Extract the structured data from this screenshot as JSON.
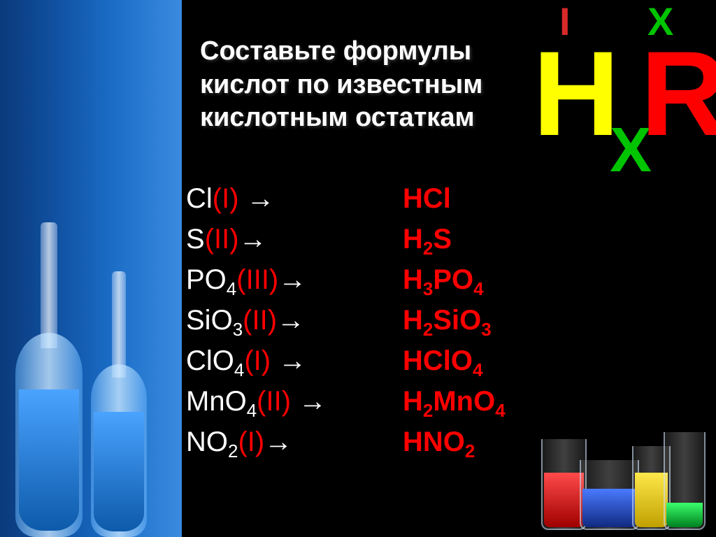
{
  "heading": "Составьте формулы кислот по известным кислотным остаткам",
  "general_formula": {
    "valence_h": "I",
    "valence_r": "X",
    "H": "H",
    "x": "X",
    "R": "R",
    "colors": {
      "H": "#ffff00",
      "x": "#00c400",
      "R": "#ff0000",
      "valence_h": "#d92a2a",
      "valence_r": "#00c400"
    }
  },
  "rows": [
    {
      "residue_elem": "Cl",
      "residue_sub": "",
      "valence": "(I)",
      "acid_pre": "H",
      "acid_elem": "Cl",
      "acid_post_sub": ""
    },
    {
      "residue_elem": "S",
      "residue_sub": "",
      "valence": "(II)",
      "acid_pre": "H",
      "acid_pre_sub": "2",
      "acid_elem": "S",
      "acid_post_sub": ""
    },
    {
      "residue_elem": "PO",
      "residue_sub": "4",
      "valence": "(III)",
      "acid_pre": "H",
      "acid_pre_sub": "3",
      "acid_elem": "PO",
      "acid_post_sub": "4"
    },
    {
      "residue_elem": "SiO",
      "residue_sub": "3",
      "valence": "(II)",
      "acid_pre": "H",
      "acid_pre_sub": "2",
      "acid_elem": "SiO",
      "acid_post_sub": "3"
    },
    {
      "residue_elem": "ClO",
      "residue_sub": "4",
      "valence": "(I)",
      "acid_pre": "H",
      "acid_elem": "ClO",
      "acid_post_sub": "4"
    },
    {
      "residue_elem": "MnO",
      "residue_sub": "4",
      "valence": "(II)",
      "acid_pre": "H",
      "acid_pre_sub": "2",
      "acid_elem": "MnO",
      "acid_post_sub": "4"
    },
    {
      "residue_elem": "NO",
      "residue_sub": "2",
      "valence": "(I)",
      "acid_pre": "H",
      "acid_elem": "NO",
      "acid_post_sub": "2"
    }
  ],
  "colors": {
    "background": "#000000",
    "white_text": "#ffffff",
    "red_text": "#ff0000",
    "bg_gradient_left": "#0a3a7a",
    "bg_gradient_right": "#3a8be0"
  },
  "typography": {
    "heading_fontsize": 38,
    "row_fontsize": 40,
    "general_main_fontsize": 172,
    "general_labels_fontsize": 56
  },
  "decorative": {
    "left_flasks_liquid": "#0d5aaa",
    "beakers": [
      {
        "color": "#a00000"
      },
      {
        "color": "#102a80"
      },
      {
        "color": "#c0a000"
      },
      {
        "color": "#008020"
      }
    ]
  }
}
